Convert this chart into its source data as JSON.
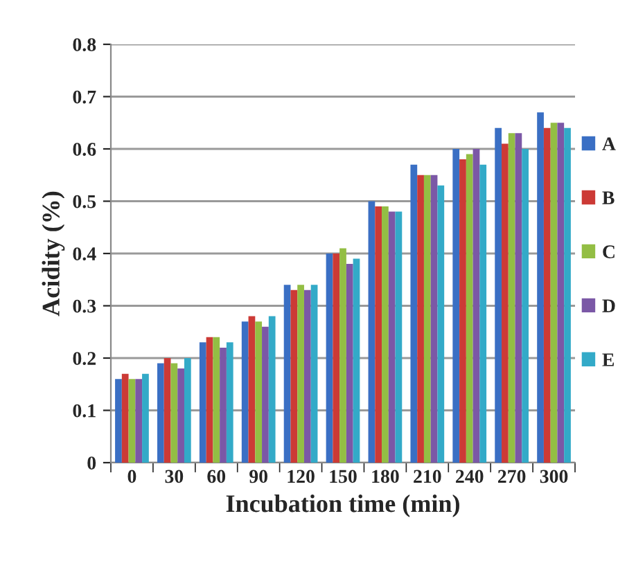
{
  "chart_data": {
    "type": "bar",
    "xlabel": "Incubation time (min)",
    "ylabel": "Acidity (%)",
    "categories": [
      "0",
      "30",
      "60",
      "90",
      "120",
      "150",
      "180",
      "210",
      "240",
      "270",
      "300"
    ],
    "series": [
      {
        "name": "A",
        "color": "#3a6fc4",
        "values": [
          0.16,
          0.19,
          0.23,
          0.27,
          0.34,
          0.4,
          0.5,
          0.57,
          0.6,
          0.64,
          0.67
        ]
      },
      {
        "name": "B",
        "color": "#cc3a36",
        "values": [
          0.17,
          0.2,
          0.24,
          0.28,
          0.33,
          0.4,
          0.49,
          0.55,
          0.58,
          0.61,
          0.64
        ]
      },
      {
        "name": "C",
        "color": "#93be44",
        "values": [
          0.16,
          0.19,
          0.24,
          0.27,
          0.34,
          0.41,
          0.49,
          0.55,
          0.59,
          0.63,
          0.65
        ]
      },
      {
        "name": "D",
        "color": "#7b58a6",
        "values": [
          0.16,
          0.18,
          0.22,
          0.26,
          0.33,
          0.38,
          0.48,
          0.55,
          0.6,
          0.63,
          0.65
        ]
      },
      {
        "name": "E",
        "color": "#33aac8",
        "values": [
          0.17,
          0.2,
          0.23,
          0.28,
          0.34,
          0.39,
          0.48,
          0.53,
          0.57,
          0.6,
          0.64
        ]
      }
    ],
    "ylim": [
      0,
      0.8
    ],
    "yticks": [
      {
        "value": 0,
        "label": "0"
      },
      0.1,
      0.2,
      0.3,
      0.4,
      0.5,
      0.6,
      0.7,
      0.8
    ],
    "grid": "y",
    "legend": "right"
  }
}
